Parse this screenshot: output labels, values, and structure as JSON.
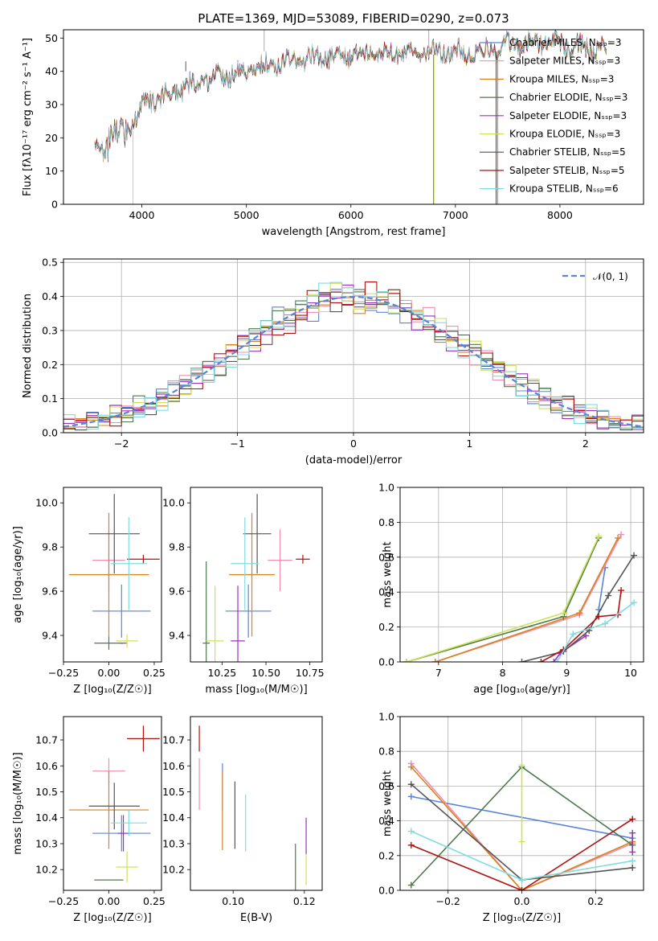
{
  "chart_data": [
    {
      "type": "line",
      "id": "spectrum",
      "title": "PLATE=1369, MJD=53089, FIBERID=0290, z=0.073",
      "xlabel": "wavelength [Angstrom, rest frame]",
      "ylabel": "Flux [fλ10⁻¹⁷ erg cm⁻² s⁻¹ A⁻¹]",
      "xlim": [
        3250,
        8800
      ],
      "ylim": [
        0,
        52.5
      ],
      "xticks": [
        4000,
        5000,
        6000,
        7000,
        8000
      ],
      "yticks": [
        0,
        10,
        20,
        30,
        40,
        50
      ],
      "envelope": {
        "x": [
          3550,
          3700,
          3850,
          3950,
          4050,
          4250,
          4500,
          4750,
          5000,
          5250,
          5500,
          5750,
          6000,
          6250,
          6500,
          6750,
          7000,
          7250,
          7500,
          7750,
          8000,
          8250,
          8450
        ],
        "y": [
          17,
          20,
          22,
          26,
          31,
          33,
          36,
          39,
          40,
          42,
          43.5,
          44.5,
          45,
          45.5,
          46,
          46,
          45.5,
          46,
          47.5,
          49,
          48,
          47,
          46
        ]
      },
      "legend_position": "upper-right",
      "series": [
        {
          "name": "Chabrier MILES, N_SSP=3",
          "color": "#5b83d8"
        },
        {
          "name": "Salpeter MILES, N_SSP=3",
          "color": "#f08fb0"
        },
        {
          "name": "Kroupa MILES, N_SSP=3",
          "color": "#d9821e"
        },
        {
          "name": "Chabrier ELODIE, N_SSP=3",
          "color": "#4d7a4d"
        },
        {
          "name": "Salpeter ELODIE, N_SSP=3",
          "color": "#9a31c0"
        },
        {
          "name": "Kroupa ELODIE, N_SSP=3",
          "color": "#cde354"
        },
        {
          "name": "Chabrier STELIB, N_SSP=5",
          "color": "#555555"
        },
        {
          "name": "Salpeter STELIB, N_SSP=5",
          "color": "#b01212"
        },
        {
          "name": "Kroupa STELIB, N_SSP=6",
          "color": "#7fdce0"
        }
      ]
    },
    {
      "type": "line",
      "id": "residuals",
      "xlabel": "(data-model)/error",
      "ylabel": "Normed distribution",
      "xlim": [
        -2.5,
        2.5
      ],
      "ylim": [
        0,
        0.51
      ],
      "xticks": [
        -2,
        -1,
        0,
        1,
        2
      ],
      "yticks": [
        0.0,
        0.1,
        0.2,
        0.3,
        0.4,
        0.5
      ],
      "grid": true,
      "bin_width": 0.1,
      "legend": "𝒩(0, 1)",
      "legend_position": "upper-right"
    },
    {
      "type": "scatter",
      "id": "age_vs_Z",
      "xlabel": "Z [log₁₀(Z/Z☉)]",
      "ylabel": "age  [log₁₀(age/yr)]",
      "xlim": [
        -0.25,
        0.29
      ],
      "ylim": [
        9.28,
        10.07
      ],
      "xticks": [
        -0.25,
        0.0,
        0.25
      ],
      "yticks": [
        9.4,
        9.6,
        9.8,
        10.0
      ],
      "points": [
        {
          "x": 0.07,
          "y": 9.51,
          "xerr": 0.16,
          "yerr": 0.12
        },
        {
          "x": 0.0,
          "y": 9.74,
          "xerr": 0.09,
          "yerr": 0.14
        },
        {
          "x": 0.0,
          "y": 9.675,
          "xerr": 0.22,
          "yerr": 0.28
        },
        {
          "x": 0.0,
          "y": 9.365,
          "xerr": 0.08,
          "yerr": 0.03
        },
        {
          "x": 0.08,
          "y": 9.365,
          "xerr": 0.02,
          "yerr": 0.0
        },
        {
          "x": 0.1,
          "y": 9.375,
          "xerr": 0.06,
          "yerr": 0.03
        },
        {
          "x": 0.03,
          "y": 9.86,
          "xerr": 0.14,
          "yerr": 0.18
        },
        {
          "x": 0.19,
          "y": 9.745,
          "xerr": 0.09,
          "yerr": 0.02
        },
        {
          "x": 0.11,
          "y": 9.725,
          "xerr": 0.1,
          "yerr": 0.21
        }
      ]
    },
    {
      "type": "scatter",
      "id": "age_vs_mass",
      "xlabel": "mass [log₁₀(M/M☉)]",
      "xlim": [
        10.07,
        10.82
      ],
      "ylim": [
        9.28,
        10.07
      ],
      "xticks": [
        10.25,
        10.5,
        10.75
      ],
      "yticks": [
        9.4,
        9.6,
        9.8,
        10.0
      ],
      "points": [
        {
          "x": 10.4,
          "y": 9.51,
          "xerr": 0.13,
          "yerr": 0.12
        },
        {
          "x": 10.58,
          "y": 9.74,
          "xerr": 0.07,
          "yerr": 0.14
        },
        {
          "x": 10.42,
          "y": 9.675,
          "xerr": 0.13,
          "yerr": 0.28
        },
        {
          "x": 10.16,
          "y": 9.365,
          "xerr": 0.02,
          "yerr": 0.37
        },
        {
          "x": 10.34,
          "y": 9.375,
          "xerr": 0.04,
          "yerr": 0.25
        },
        {
          "x": 10.21,
          "y": 9.375,
          "xerr": 0.05,
          "yerr": 0.25
        },
        {
          "x": 10.45,
          "y": 9.86,
          "xerr": 0.08,
          "yerr": 0.18
        },
        {
          "x": 10.71,
          "y": 9.745,
          "xerr": 0.04,
          "yerr": 0.02
        },
        {
          "x": 10.38,
          "y": 9.725,
          "xerr": 0.08,
          "yerr": 0.21
        }
      ]
    },
    {
      "type": "line",
      "id": "mass_weight_vs_age",
      "xlabel": "age  [log₁₀(age/yr)]",
      "ylabel": "mass weight",
      "xlim": [
        6.4,
        10.2
      ],
      "ylim": [
        0,
        1.0
      ],
      "xticks": [
        7,
        8,
        9,
        10
      ],
      "yticks": [
        0.0,
        0.2,
        0.4,
        0.6,
        0.8,
        1.0
      ],
      "grid": true,
      "series": [
        {
          "x": [
            9.5,
            9.6
          ],
          "y": [
            0.3,
            0.54
          ]
        },
        {
          "x": [
            6.95,
            9.2,
            9.85
          ],
          "y": [
            0.0,
            0.27,
            0.73
          ]
        },
        {
          "x": [
            6.95,
            9.2,
            9.8
          ],
          "y": [
            0.0,
            0.28,
            0.71
          ]
        },
        {
          "x": [
            6.5,
            8.95,
            9.5
          ],
          "y": [
            0.0,
            0.26,
            0.71
          ]
        },
        {
          "x": [
            8.8,
            8.9,
            9.3
          ],
          "y": [
            0.0,
            0.05,
            0.15
          ]
        },
        {
          "x": [
            6.5,
            8.95,
            9.5
          ],
          "y": [
            0.0,
            0.28,
            0.72
          ]
        },
        {
          "x": [
            8.3,
            8.95,
            9.35,
            9.65,
            10.05
          ],
          "y": [
            0.0,
            0.06,
            0.18,
            0.38,
            0.61
          ]
        },
        {
          "x": [
            8.6,
            8.95,
            9.5,
            9.8,
            9.85
          ],
          "y": [
            0.0,
            0.07,
            0.26,
            0.27,
            0.41
          ]
        },
        {
          "x": [
            8.85,
            9.1,
            9.6,
            10.05
          ],
          "y": [
            0.0,
            0.16,
            0.22,
            0.34
          ]
        }
      ]
    },
    {
      "type": "scatter",
      "id": "mass_vs_Z",
      "xlabel": "Z [log₁₀(Z/Z☉)]",
      "ylabel": "mass [log₁₀(M/M☉)]",
      "xlim": [
        -0.25,
        0.29
      ],
      "ylim": [
        10.12,
        10.79
      ],
      "xticks": [
        -0.25,
        0.0,
        0.25
      ],
      "yticks": [
        10.2,
        10.3,
        10.4,
        10.5,
        10.6,
        10.7
      ],
      "points": [
        {
          "x": 0.07,
          "y": 10.34,
          "xerr": 0.16,
          "yerr": 0.07
        },
        {
          "x": 0.0,
          "y": 10.58,
          "xerr": 0.09,
          "yerr": 0.05
        },
        {
          "x": 0.0,
          "y": 10.43,
          "xerr": 0.22,
          "yerr": 0.15
        },
        {
          "x": 0.0,
          "y": 10.16,
          "xerr": 0.08,
          "yerr": 0.0
        },
        {
          "x": 0.08,
          "y": 10.34,
          "xerr": 0.03,
          "yerr": 0.07
        },
        {
          "x": 0.1,
          "y": 10.21,
          "xerr": 0.06,
          "yerr": 0.06
        },
        {
          "x": 0.03,
          "y": 10.445,
          "xerr": 0.14,
          "yerr": 0.09
        },
        {
          "x": 0.19,
          "y": 10.705,
          "xerr": 0.09,
          "yerr": 0.05
        },
        {
          "x": 0.11,
          "y": 10.38,
          "xerr": 0.1,
          "yerr": 0.05
        }
      ]
    },
    {
      "type": "scatter",
      "id": "mass_vs_EBV",
      "xlabel": "E(B-V)",
      "xlim": [
        0.088,
        0.125
      ],
      "ylim": [
        10.12,
        10.79
      ],
      "xticks": [
        0.1,
        0.12
      ],
      "yticks": [
        10.2,
        10.3,
        10.4,
        10.5,
        10.6,
        10.7
      ],
      "points": [
        {
          "x": 0.097,
          "y": 10.52,
          "yerr": 0.09
        },
        {
          "x": 0.0905,
          "y": 10.53,
          "yerr": 0.1
        },
        {
          "x": 0.097,
          "y": 10.425,
          "yerr": 0.15
        },
        {
          "x": 0.1175,
          "y": 10.205,
          "yerr": 0.095
        },
        {
          "x": 0.1205,
          "y": 10.33,
          "yerr": 0.07
        },
        {
          "x": 0.1205,
          "y": 10.2,
          "yerr": 0.06
        },
        {
          "x": 0.1005,
          "y": 10.41,
          "yerr": 0.13
        },
        {
          "x": 0.0905,
          "y": 10.705,
          "yerr": 0.05
        },
        {
          "x": 0.1035,
          "y": 10.38,
          "yerr": 0.11
        }
      ]
    },
    {
      "type": "line",
      "id": "mass_weight_vs_Z",
      "xlabel": "Z [log₁₀(Z/Z☉)]",
      "ylabel": "mass weight",
      "xlim": [
        -0.33,
        0.33
      ],
      "ylim": [
        0,
        1.0
      ],
      "xticks": [
        -0.2,
        0.0,
        0.2
      ],
      "yticks": [
        0.0,
        0.2,
        0.4,
        0.6,
        0.8,
        1.0
      ],
      "grid": true,
      "series": [
        {
          "x": [
            -0.3,
            0.3
          ],
          "y": [
            0.54,
            0.3
          ]
        },
        {
          "x": [
            -0.3,
            0.0,
            0.3
          ],
          "y": [
            0.73,
            0.0,
            0.27
          ]
        },
        {
          "x": [
            -0.3,
            0.0,
            0.3
          ],
          "y": [
            0.71,
            0.0,
            0.28
          ]
        },
        {
          "x": [
            -0.3,
            0.0,
            0.3
          ],
          "y": [
            0.03,
            0.71,
            0.26
          ]
        },
        {
          "x": [
            0.3,
            0.3
          ],
          "y": [
            0.22,
            0.33
          ]
        },
        {
          "x": [
            0.0,
            0.0
          ],
          "y": [
            0.72,
            0.28
          ]
        },
        {
          "x": [
            -0.3,
            0.0,
            0.3
          ],
          "y": [
            0.61,
            0.06,
            0.13
          ]
        },
        {
          "x": [
            -0.3,
            0.0,
            0.3
          ],
          "y": [
            0.26,
            0.0,
            0.41
          ]
        },
        {
          "x": [
            -0.3,
            0.0,
            0.3
          ],
          "y": [
            0.34,
            0.06,
            0.17
          ]
        }
      ]
    }
  ]
}
